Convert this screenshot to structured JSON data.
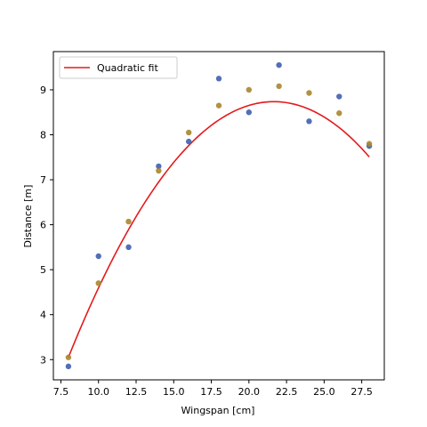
{
  "chart_data": {
    "type": "scatter",
    "title": "",
    "xlabel": "Wingspan [cm]",
    "ylabel": "Distance [m]",
    "xlim": [
      7.0,
      29.0
    ],
    "ylim": [
      2.55,
      9.85
    ],
    "xticks": [
      "7.5",
      "10.0",
      "12.5",
      "15.0",
      "17.5",
      "20.0",
      "22.5",
      "25.0",
      "27.5"
    ],
    "yticks": [
      "3",
      "4",
      "5",
      "6",
      "7",
      "8",
      "9"
    ],
    "grid": false,
    "legend": {
      "position": "top-left",
      "entries": [
        "Quadratic fit"
      ]
    },
    "series": [
      {
        "kind": "scatter",
        "color": "#3f5fb0",
        "points": [
          [
            8,
            2.85
          ],
          [
            10,
            5.3
          ],
          [
            12,
            5.5
          ],
          [
            14,
            7.3
          ],
          [
            16,
            7.85
          ],
          [
            18,
            9.25
          ],
          [
            20,
            8.5
          ],
          [
            22,
            9.55
          ],
          [
            24,
            8.3
          ],
          [
            26,
            8.85
          ],
          [
            28,
            7.75
          ]
        ]
      },
      {
        "kind": "scatter",
        "color": "#a8862e",
        "points": [
          [
            8,
            3.05
          ],
          [
            10,
            4.7
          ],
          [
            12,
            6.07
          ],
          [
            14,
            7.2
          ],
          [
            16,
            8.05
          ],
          [
            18,
            8.65
          ],
          [
            20,
            9.0
          ],
          [
            22,
            9.08
          ],
          [
            24,
            8.93
          ],
          [
            26,
            8.48
          ],
          [
            28,
            7.8
          ]
        ]
      },
      {
        "name": "Quadratic fit",
        "kind": "line",
        "color": "#e41a1c",
        "quadratic": {
          "a": -0.0305,
          "b": 1.3209,
          "c": -5.565
        },
        "x_range": [
          8,
          28
        ]
      }
    ]
  }
}
